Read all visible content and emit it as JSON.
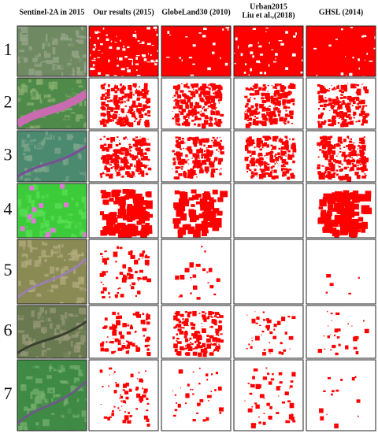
{
  "figure": {
    "columns": [
      [
        "Sentinel-2A in 2015"
      ],
      [
        "Our results (2015)"
      ],
      [
        "GlobeLand30 (2010)"
      ],
      [
        "Urban2015",
        "Liu et al.,(2018)"
      ],
      [
        "GHSL (2014)"
      ]
    ],
    "rows": [
      "1",
      "2",
      "3",
      "4",
      "5",
      "6",
      "7"
    ]
  }
}
